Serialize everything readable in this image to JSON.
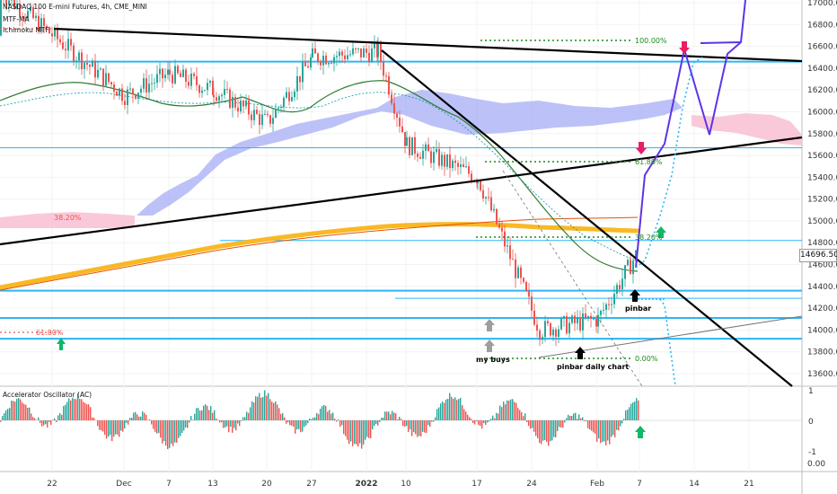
{
  "header": {
    "symbol_line": "NASDAQ 100 E-mini Futures, 4h, CME_MINI",
    "indicator_1": "MTF-MA",
    "indicator_2": "Ichimoku MTF"
  },
  "oscillator": {
    "title": "Accelerator Oscillator (AC)",
    "ticks": [
      "1",
      "0",
      "-1"
    ],
    "value_readout": "0.00"
  },
  "current_price": "14696.50",
  "colors": {
    "bull_candle": "#26a69a",
    "bear_candle": "#ef5350",
    "trendline": "#000000",
    "horizontal_level": "#29b6f6",
    "cloud_bull": "#9fa8f5",
    "cloud_bear": "#f8bbd0",
    "ma_200": "#f9b824",
    "ma_slow": "#e65100",
    "ma_fast": "#2e7d32",
    "projection": "#5c35e6",
    "fib_dotted": "#1b8a1b",
    "arrow_up_green": "#12b76a",
    "arrow_down_pink": "#e91e63",
    "arrow_up_black": "#000000",
    "arrow_up_gray": "#9e9e9e"
  },
  "chart_data": {
    "type": "line",
    "title": "NASDAQ 100 E-mini Futures, 4h, CME_MINI",
    "xlabel": "",
    "ylabel": "",
    "ylim": [
      13600,
      17000
    ],
    "y_ticks": [
      13600,
      13800,
      14000,
      14200,
      14400,
      14600,
      14800,
      15000,
      15200,
      15400,
      15600,
      15800,
      16000,
      16200,
      16400,
      16600,
      16800,
      17000
    ],
    "y_tick_labels": [
      "13600.00",
      "13800.00",
      "14000.00",
      "14200.00",
      "14400.00",
      "14600.00",
      "14800.00",
      "15000.00",
      "15200.00",
      "15400.00",
      "15600.00",
      "15800.00",
      "16000.00",
      "16200.00",
      "16400.00",
      "16600.00",
      "16800.00",
      "17000.00"
    ],
    "x_tick_labels": [
      "22",
      "Dec",
      "7",
      "13",
      "20",
      "27",
      "2022",
      "10",
      "17",
      "24",
      "Feb",
      "7",
      "14",
      "21"
    ],
    "grid": true,
    "legend": "none",
    "series": [
      {
        "name": "NASDAQ 100 E-mini Futures",
        "x": [
          "22",
          "Dec",
          "7",
          "13",
          "20",
          "27",
          "2022",
          "10",
          "17",
          "24",
          "Feb",
          "7"
        ],
        "values": [
          16700,
          16150,
          16350,
          16200,
          15900,
          16500,
          16550,
          15700,
          15400,
          14000,
          14100,
          14696.5
        ]
      }
    ],
    "horizontal_levels": [
      16460,
      15670,
      14820,
      14360,
      14290,
      14110,
      13920
    ],
    "annotations": [
      {
        "text": "100.00%",
        "y": 16670
      },
      {
        "text": "61.80%",
        "y": 15570
      },
      {
        "text": "38.20%",
        "y": 15030
      },
      {
        "text": "38.20%",
        "y": 14820
      },
      {
        "text": "61.80%",
        "y": 13970
      },
      {
        "text": "0.00%",
        "y": 13720
      },
      {
        "text": "pinbar",
        "y": 14200
      },
      {
        "text": "my buys",
        "y": 13720
      },
      {
        "text": "pinbar daily chart",
        "y": 13660
      }
    ]
  }
}
